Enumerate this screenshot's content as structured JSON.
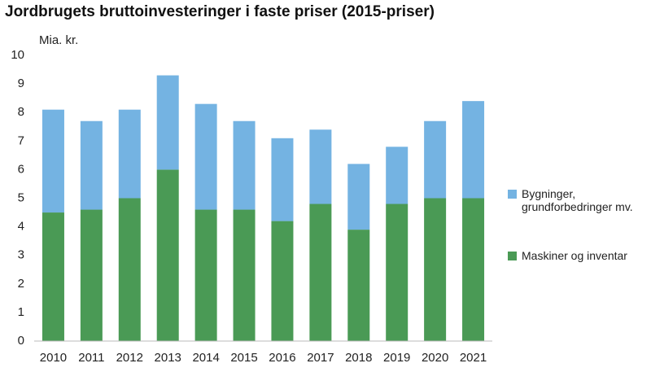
{
  "chart_data": {
    "type": "stacked_bar",
    "title": "Jordbrugets bruttoinvesteringer i faste priser (2015-priser)",
    "y_label": "Mia. kr.",
    "categories": [
      "2010",
      "2011",
      "2012",
      "2013",
      "2014",
      "2015",
      "2016",
      "2017",
      "2018",
      "2019",
      "2020",
      "2021"
    ],
    "series": [
      {
        "name": "Maskiner og inventar",
        "color": "#4a9a55",
        "values": [
          4.5,
          4.6,
          5.0,
          6.0,
          4.6,
          4.6,
          4.2,
          4.8,
          3.9,
          4.8,
          5.0,
          5.0
        ]
      },
      {
        "name": "Bygninger, grundforbedringer mv.",
        "color": "#74b3e2",
        "values": [
          3.6,
          3.1,
          3.1,
          3.3,
          3.7,
          3.1,
          2.9,
          2.6,
          2.3,
          2.0,
          2.7,
          3.4
        ]
      }
    ],
    "ylim": [
      0,
      10
    ],
    "yticks": [
      0,
      1,
      2,
      3,
      4,
      5,
      6,
      7,
      8,
      9,
      10
    ],
    "grid": false
  }
}
